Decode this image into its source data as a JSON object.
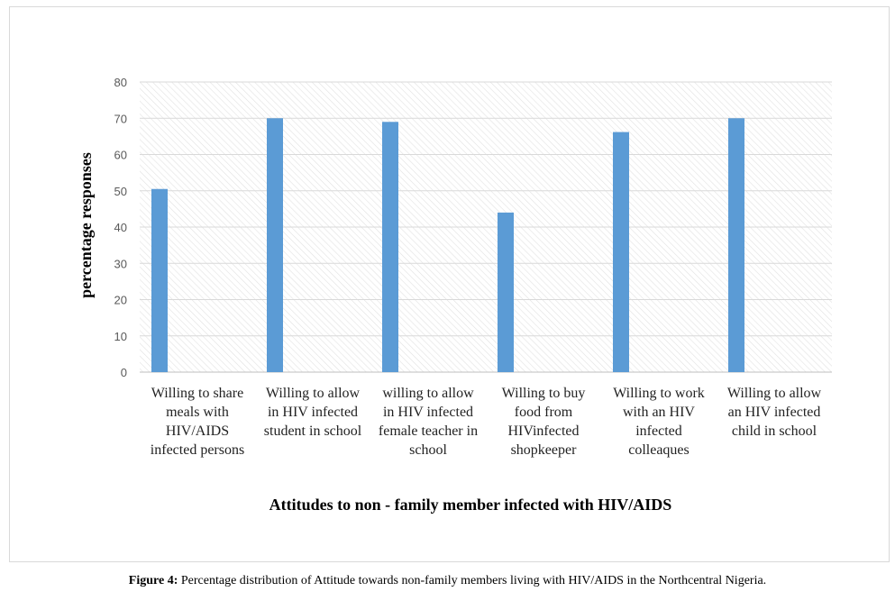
{
  "chart_data": {
    "type": "bar",
    "categories": [
      [
        "Willing to share",
        "meals with",
        "HIV/AIDS",
        "infected persons"
      ],
      [
        "Willing to allow",
        "in HIV infected",
        "student in school"
      ],
      [
        "willing to allow",
        "in HIV infected",
        "female teacher in",
        "school"
      ],
      [
        "Willing to buy",
        "food from",
        "HIVinfected",
        "shopkeeper"
      ],
      [
        "Willing to work",
        "with an HIV",
        "infected",
        "colleaques"
      ],
      [
        "Willing to allow",
        "an HIV infected",
        "child in school"
      ]
    ],
    "values": [
      50.5,
      70,
      69,
      44,
      66.2,
      70
    ],
    "ylim": [
      0,
      80
    ],
    "yticks": [
      0,
      10,
      20,
      30,
      40,
      50,
      60,
      70,
      80
    ],
    "xlabel": "Attitudes to non - family member infected with HIV/AIDS",
    "ylabel": "percentage responses",
    "grid": true,
    "bar_color": "#5b9bd5",
    "grid_color": "#d9d9d9"
  },
  "caption": {
    "label": "Figure 4:",
    "text": " Percentage distribution of Attitude towards non-family members living with HIV/AIDS in the Northcentral Nigeria."
  }
}
